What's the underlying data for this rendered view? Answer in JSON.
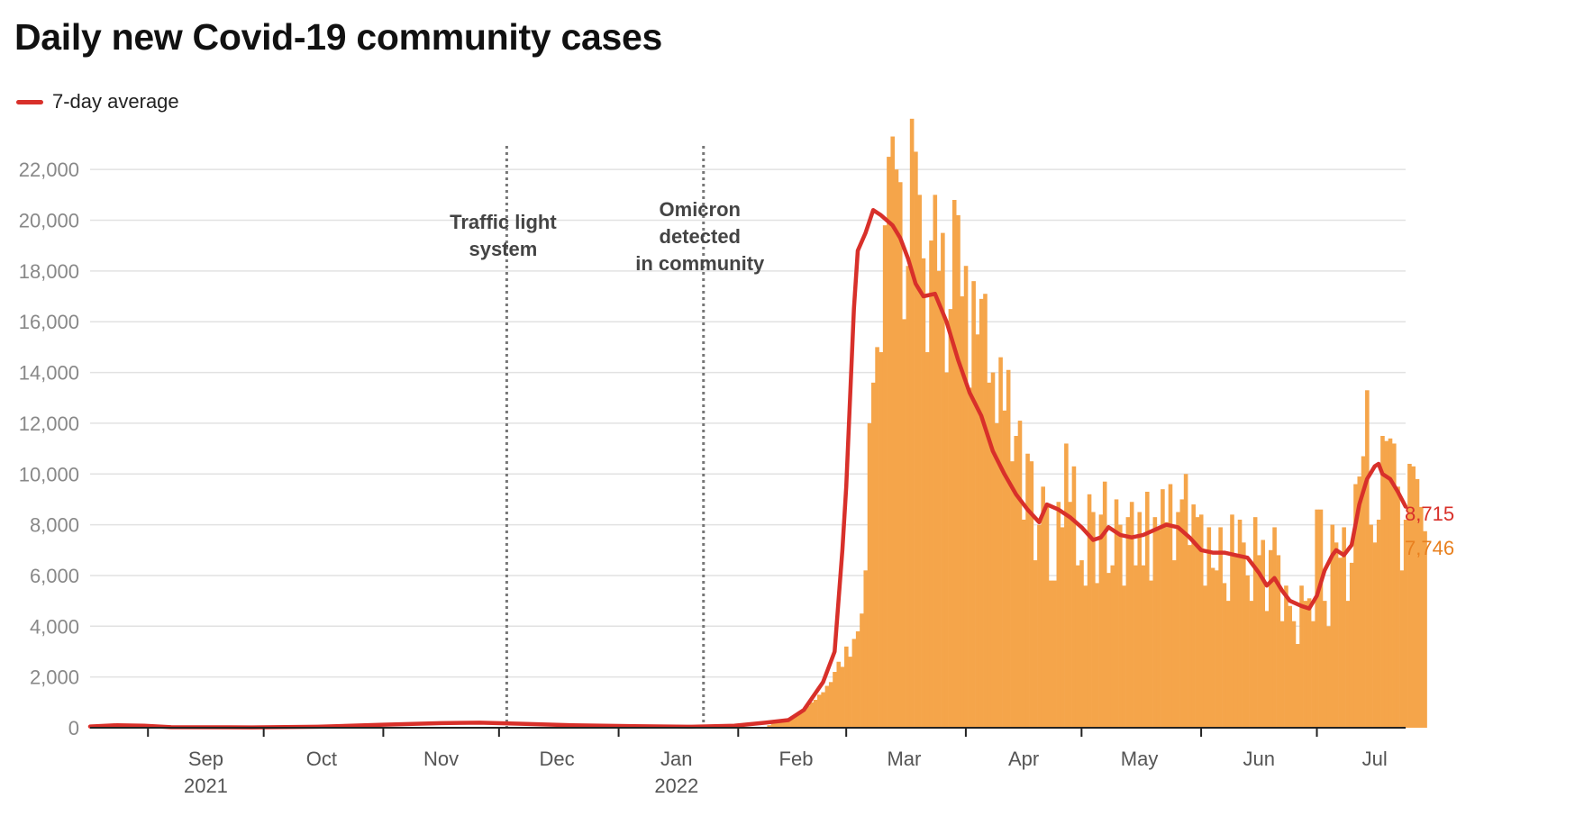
{
  "title": "Daily new Covid-19 community cases",
  "legend": {
    "avg_label": "7-day average"
  },
  "colors": {
    "bars": "#f5a54a",
    "line": "#d8302a",
    "grid": "#e2e2e2",
    "bar_label": "#e8801f"
  },
  "chart_data": {
    "type": "bar",
    "title": "Daily new Covid-19 community cases",
    "ylim": [
      0,
      23000
    ],
    "y_ticks": [
      0,
      2000,
      4000,
      6000,
      8000,
      10000,
      12000,
      14000,
      16000,
      18000,
      20000,
      22000
    ],
    "y_tick_labels": [
      "0",
      "2,000",
      "4,000",
      "6,000",
      "8,000",
      "10,000",
      "12,000",
      "14,000",
      "16,000",
      "18,000",
      "20,000",
      "22,000"
    ],
    "x_start_date": "2021-08-17",
    "x_end_date": "2022-07-24",
    "month_ticks": [
      {
        "date": "2021-09-01",
        "label": "Sep",
        "year": "2021"
      },
      {
        "date": "2021-10-01",
        "label": "Oct"
      },
      {
        "date": "2021-11-01",
        "label": "Nov"
      },
      {
        "date": "2021-12-01",
        "label": "Dec"
      },
      {
        "date": "2022-01-01",
        "label": "Jan",
        "year": "2022"
      },
      {
        "date": "2022-02-01",
        "label": "Feb"
      },
      {
        "date": "2022-03-01",
        "label": "Mar"
      },
      {
        "date": "2022-04-01",
        "label": "Apr"
      },
      {
        "date": "2022-05-01",
        "label": "May"
      },
      {
        "date": "2022-06-01",
        "label": "Jun"
      },
      {
        "date": "2022-07-01",
        "label": "Jul"
      }
    ],
    "annotations": [
      {
        "date": "2021-12-03",
        "lines": [
          "Traffic light",
          "system"
        ]
      },
      {
        "date": "2022-01-23",
        "lines": [
          "Omicron",
          "detected",
          "in community"
        ]
      }
    ],
    "daily_cases": {
      "start_date": "2022-02-09",
      "values": [
        100,
        200,
        200,
        250,
        300,
        350,
        400,
        500,
        650,
        700,
        850,
        1000,
        1100,
        1300,
        1400,
        1650,
        1800,
        2200,
        2600,
        2400,
        3200,
        2800,
        3500,
        3800,
        4500,
        6200,
        12000,
        13600,
        15000,
        14800,
        19800,
        22500,
        23300,
        22000,
        21500,
        16100,
        18200,
        24000,
        22700,
        21000,
        18500,
        14800,
        19200,
        21000,
        18000,
        19500,
        14000,
        16500,
        20800,
        20200,
        17000,
        18200,
        13400,
        17600,
        15500,
        16900,
        17100,
        13600,
        14000,
        12000,
        14600,
        12500,
        14100,
        10500,
        11500,
        12100,
        8200,
        10800,
        10500,
        6600,
        8000,
        9500,
        8700,
        5800,
        5800,
        8900,
        7900,
        11200,
        8900,
        10300,
        6400,
        6600,
        5600,
        9200,
        8500,
        5700,
        8400,
        9700,
        6100,
        6400,
        9000,
        8000,
        5600,
        8300,
        8900,
        6400,
        8500,
        6400,
        9300,
        5800,
        8300,
        7800,
        9400,
        8100,
        9600,
        6600,
        8500,
        9000,
        10000,
        7200,
        8800,
        8300,
        8400,
        5600,
        7900,
        6300,
        6200,
        7900,
        5700,
        5000,
        8400,
        6800,
        8200,
        7300,
        6000,
        5000,
        8300,
        6800,
        7400,
        4600,
        7000,
        7900,
        6800,
        4200,
        5600,
        4800,
        4200,
        3300,
        5600,
        5000,
        5100,
        4200,
        8600,
        8600,
        5000,
        4000,
        8000,
        7300,
        6700,
        7900,
        5000,
        6500,
        9600,
        9900,
        10700,
        13300,
        8000,
        7300,
        8200,
        11500,
        11300,
        11400,
        11200,
        9500,
        6200,
        8200,
        10400,
        10300,
        9800,
        8700,
        7746
      ]
    },
    "series": [
      {
        "name": "7-day average",
        "points": [
          [
            "2021-08-17",
            50
          ],
          [
            "2021-08-24",
            100
          ],
          [
            "2021-08-31",
            80
          ],
          [
            "2021-09-07",
            20
          ],
          [
            "2021-09-28",
            15
          ],
          [
            "2021-10-15",
            40
          ],
          [
            "2021-11-01",
            120
          ],
          [
            "2021-11-16",
            180
          ],
          [
            "2021-11-26",
            200
          ],
          [
            "2021-12-06",
            160
          ],
          [
            "2021-12-20",
            100
          ],
          [
            "2022-01-05",
            60
          ],
          [
            "2022-01-20",
            40
          ],
          [
            "2022-01-31",
            80
          ],
          [
            "2022-02-08",
            200
          ],
          [
            "2022-02-14",
            300
          ],
          [
            "2022-02-18",
            700
          ],
          [
            "2022-02-23",
            1800
          ],
          [
            "2022-02-26",
            3000
          ],
          [
            "2022-02-28",
            7000
          ],
          [
            "2022-03-01",
            9500
          ],
          [
            "2022-03-03",
            16500
          ],
          [
            "2022-03-04",
            18800
          ],
          [
            "2022-03-06",
            19500
          ],
          [
            "2022-03-08",
            20400
          ],
          [
            "2022-03-10",
            20200
          ],
          [
            "2022-03-13",
            19800
          ],
          [
            "2022-03-15",
            19300
          ],
          [
            "2022-03-17",
            18500
          ],
          [
            "2022-03-19",
            17500
          ],
          [
            "2022-03-21",
            17000
          ],
          [
            "2022-03-24",
            17100
          ],
          [
            "2022-03-27",
            16000
          ],
          [
            "2022-03-30",
            14500
          ],
          [
            "2022-04-02",
            13200
          ],
          [
            "2022-04-05",
            12300
          ],
          [
            "2022-04-08",
            10900
          ],
          [
            "2022-04-11",
            10000
          ],
          [
            "2022-04-14",
            9200
          ],
          [
            "2022-04-17",
            8600
          ],
          [
            "2022-04-20",
            8100
          ],
          [
            "2022-04-22",
            8800
          ],
          [
            "2022-04-25",
            8600
          ],
          [
            "2022-04-28",
            8300
          ],
          [
            "2022-05-01",
            7900
          ],
          [
            "2022-05-04",
            7400
          ],
          [
            "2022-05-06",
            7500
          ],
          [
            "2022-05-08",
            7900
          ],
          [
            "2022-05-11",
            7600
          ],
          [
            "2022-05-14",
            7500
          ],
          [
            "2022-05-17",
            7600
          ],
          [
            "2022-05-20",
            7800
          ],
          [
            "2022-05-23",
            8000
          ],
          [
            "2022-05-26",
            7900
          ],
          [
            "2022-05-29",
            7500
          ],
          [
            "2022-06-01",
            7000
          ],
          [
            "2022-06-04",
            6900
          ],
          [
            "2022-06-07",
            6900
          ],
          [
            "2022-06-10",
            6800
          ],
          [
            "2022-06-13",
            6700
          ],
          [
            "2022-06-16",
            6100
          ],
          [
            "2022-06-18",
            5600
          ],
          [
            "2022-06-20",
            5900
          ],
          [
            "2022-06-22",
            5400
          ],
          [
            "2022-06-24",
            5000
          ],
          [
            "2022-06-27",
            4800
          ],
          [
            "2022-06-29",
            4700
          ],
          [
            "2022-07-01",
            5200
          ],
          [
            "2022-07-03",
            6200
          ],
          [
            "2022-07-05",
            6800
          ],
          [
            "2022-07-06",
            7000
          ],
          [
            "2022-07-08",
            6800
          ],
          [
            "2022-07-10",
            7200
          ],
          [
            "2022-07-12",
            8800
          ],
          [
            "2022-07-14",
            9800
          ],
          [
            "2022-07-16",
            10300
          ],
          [
            "2022-07-17",
            10400
          ],
          [
            "2022-07-18",
            10000
          ],
          [
            "2022-07-20",
            9800
          ],
          [
            "2022-07-22",
            9300
          ],
          [
            "2022-07-24",
            8715
          ]
        ]
      }
    ],
    "end_labels": {
      "avg": {
        "value": 8715,
        "text": "8,715"
      },
      "daily": {
        "value": 7746,
        "text": "7,746"
      }
    }
  }
}
